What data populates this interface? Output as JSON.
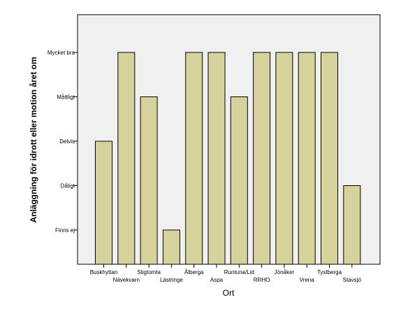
{
  "chart_data": {
    "type": "bar",
    "categories": [
      "Buskhyttan",
      "Nävekvarn",
      "Stigtomta",
      "Lästringe",
      "Ålberga",
      "Aspa",
      "Runtuna/Lid",
      "RRHO",
      "Jönåker",
      "Vrena",
      "Tystberga",
      "Stavsjö"
    ],
    "values": [
      3,
      5,
      4,
      1,
      5,
      5,
      4,
      5,
      5,
      5,
      5,
      2
    ],
    "y_tick_labels": [
      "Finns ej",
      "Dåligt",
      "Delvis",
      "Måttligt",
      "Mycket bra"
    ],
    "xlabel": "Ort",
    "ylabel": "Anläggning för idrott eller motion året om",
    "ylim": [
      0,
      5.5
    ],
    "grid": false,
    "colors": {
      "bar_fill": "#d6d29c",
      "bar_stroke": "#000000",
      "plot_background": "#f0f0f0",
      "axis": "#000000"
    }
  }
}
